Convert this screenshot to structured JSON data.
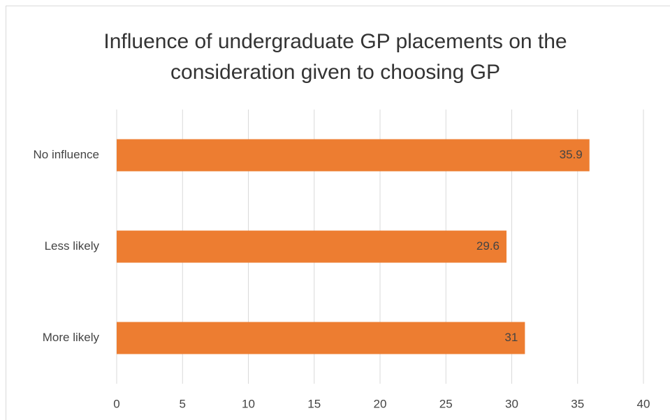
{
  "chart_data": {
    "type": "hbar",
    "title": "Influence of undergraduate GP placements on the consideration given to choosing GP",
    "categories": [
      "No influence",
      "Less likely",
      "More likely"
    ],
    "values": [
      35.9,
      29.6,
      31
    ],
    "color": "#ed7d31",
    "xlim": [
      0,
      40
    ],
    "xticks": [
      0,
      5,
      10,
      15,
      20,
      25,
      30,
      35,
      40
    ],
    "grid": true
  }
}
